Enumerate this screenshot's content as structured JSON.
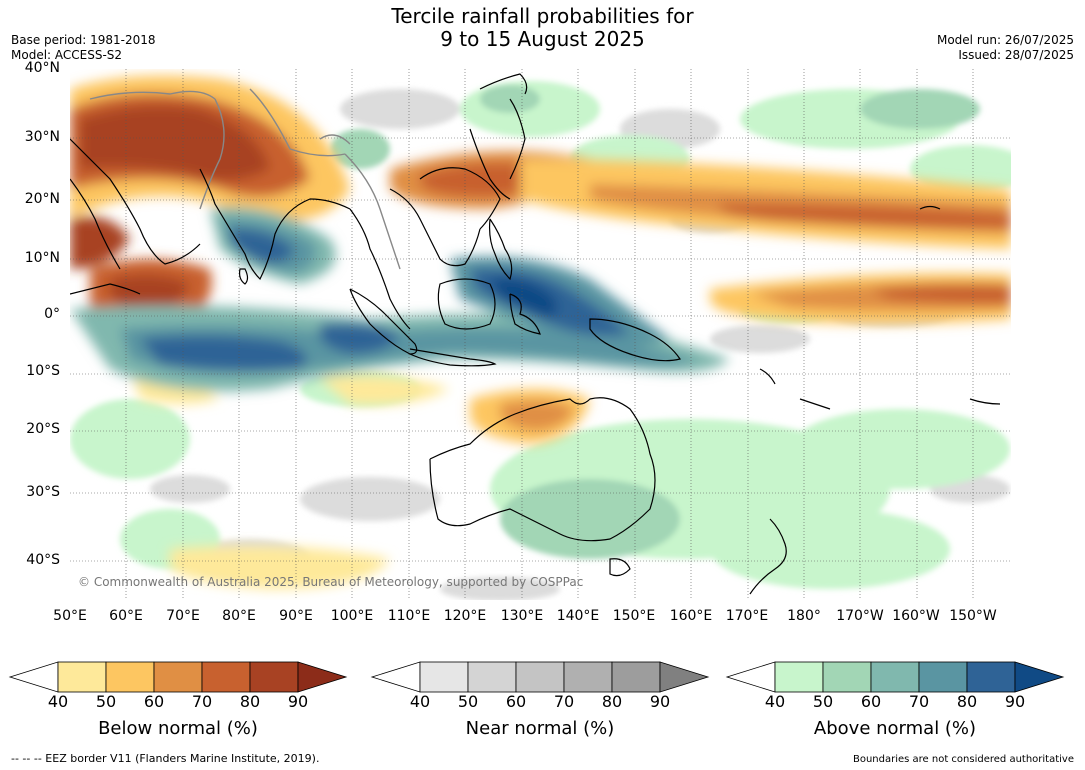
{
  "title": {
    "line1": "Tercile rainfall probabilities for",
    "line2": "9 to 15 August 2025"
  },
  "meta_left": {
    "base_period": "Base period: 1981-2018",
    "model": "Model: ACCESS-S2"
  },
  "meta_right": {
    "model_run": "Model run: 26/07/2025",
    "issued": "Issued: 28/07/2025"
  },
  "map": {
    "lat_ticks": [
      "40°N",
      "30°N",
      "20°N",
      "10°N",
      "0°",
      "10°S",
      "20°S",
      "30°S",
      "40°S"
    ],
    "lon_ticks": [
      "50°E",
      "60°E",
      "70°E",
      "80°E",
      "90°E",
      "100°E",
      "110°E",
      "120°E",
      "130°E",
      "140°E",
      "150°E",
      "160°E",
      "170°E",
      "180°",
      "170°W",
      "160°W",
      "150°W"
    ],
    "copyright": "© Commonwealth of Australia 2025, Bureau of Meteorology, supported by COSPPac",
    "colors": {
      "coast": "#000000",
      "border": "#888888",
      "grid": "#555555"
    }
  },
  "colorbars": [
    {
      "label": "Below normal (%)",
      "ticks": [
        "40",
        "50",
        "60",
        "70",
        "80",
        "90"
      ],
      "colors": [
        "#ffffff",
        "#fee99a",
        "#fdc661",
        "#e08f44",
        "#c8612f",
        "#a84223",
        "#8c2c19"
      ]
    },
    {
      "label": "Near normal (%)",
      "ticks": [
        "40",
        "50",
        "60",
        "70",
        "80",
        "90"
      ],
      "colors": [
        "#ffffff",
        "#e6e6e6",
        "#d4d4d4",
        "#c4c4c4",
        "#b0b0b0",
        "#9d9d9d",
        "#808080"
      ]
    },
    {
      "label": "Above normal (%)",
      "ticks": [
        "40",
        "50",
        "60",
        "70",
        "80",
        "90"
      ],
      "colors": [
        "#ffffff",
        "#c8f5cc",
        "#a2d6b5",
        "#80b8ae",
        "#5a95a2",
        "#2f6396",
        "#104a85"
      ]
    }
  ],
  "footer": {
    "eez_legend": "--  --  -- EEZ border V11 (Flanders Marine Institute, 2019).",
    "disclaimer": "Boundaries are not considered authoritative"
  }
}
